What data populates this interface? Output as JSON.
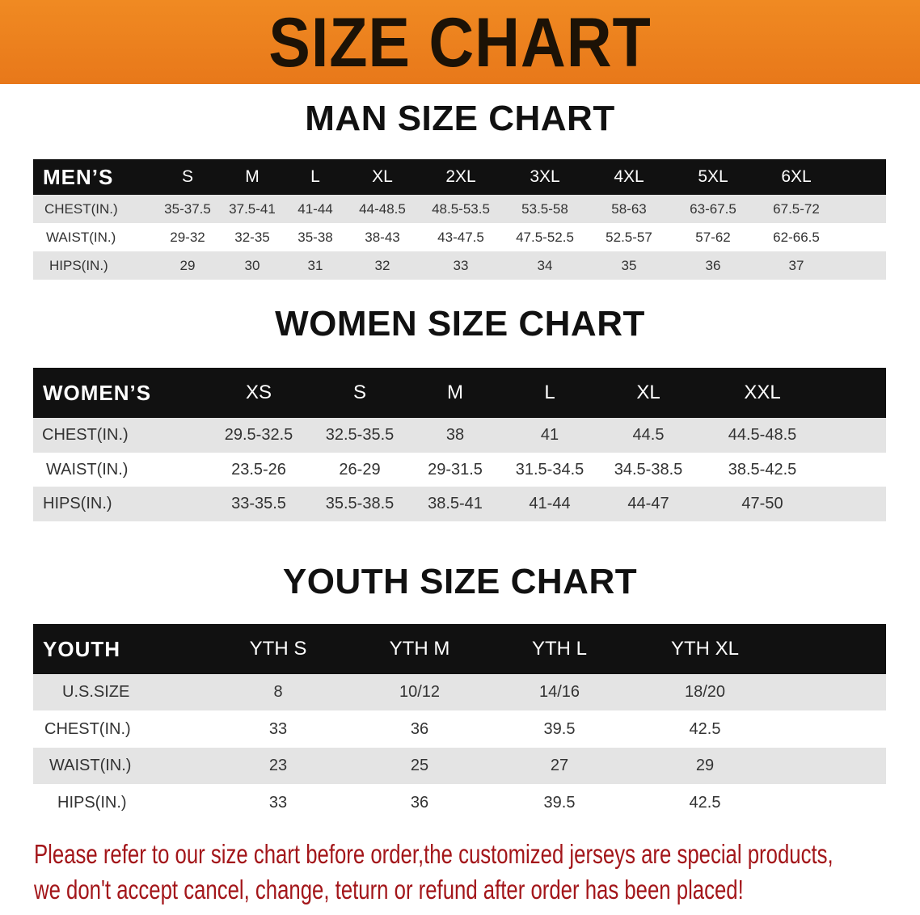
{
  "banner": {
    "title": "SIZE CHART",
    "color": "#e8781a"
  },
  "men": {
    "title": "MAN SIZE CHART",
    "header_label": "MEN’S",
    "sizes": [
      "S",
      "M",
      "L",
      "XL",
      "2XL",
      "3XL",
      "4XL",
      "5XL",
      "6XL"
    ],
    "rows": [
      {
        "label": "CHEST(IN.)",
        "values": [
          "35-37.5",
          "37.5-41",
          "41-44",
          "44-48.5",
          "48.5-53.5",
          "53.5-58",
          "58-63",
          "63-67.5",
          "67.5-72"
        ]
      },
      {
        "label": "WAIST(IN.)",
        "values": [
          "29-32",
          "32-35",
          "35-38",
          "38-43",
          "43-47.5",
          "47.5-52.5",
          "52.5-57",
          "57-62",
          "62-66.5"
        ]
      },
      {
        "label": "HIPS(IN.)",
        "values": [
          "29",
          "30",
          "31",
          "32",
          "33",
          "34",
          "35",
          "36",
          "37"
        ]
      }
    ]
  },
  "women": {
    "title": "WOMEN SIZE CHART",
    "header_label": "WOMEN’S",
    "sizes": [
      "XS",
      "S",
      "M",
      "L",
      "XL",
      "XXL"
    ],
    "rows": [
      {
        "label": "CHEST(IN.)",
        "values": [
          "29.5-32.5",
          "32.5-35.5",
          "38",
          "41",
          "44.5",
          "44.5-48.5"
        ]
      },
      {
        "label": "WAIST(IN.)",
        "values": [
          "23.5-26",
          "26-29",
          "29-31.5",
          "31.5-34.5",
          "34.5-38.5",
          "38.5-42.5"
        ]
      },
      {
        "label": "HIPS(IN.)",
        "values": [
          "33-35.5",
          "35.5-38.5",
          "38.5-41",
          "41-44",
          "44-47",
          "47-50"
        ]
      }
    ]
  },
  "youth": {
    "title": "YOUTH SIZE CHART",
    "header_label": "YOUTH",
    "sizes": [
      "YTH S",
      "YTH M",
      "YTH L",
      "YTH XL"
    ],
    "rows": [
      {
        "label": "U.S.SIZE",
        "values": [
          "8",
          "10/12",
          "14/16",
          "18/20"
        ]
      },
      {
        "label": "CHEST(IN.)",
        "values": [
          "33",
          "36",
          "39.5",
          "42.5"
        ]
      },
      {
        "label": "WAIST(IN.)",
        "values": [
          "23",
          "25",
          "27",
          "29"
        ]
      },
      {
        "label": "HIPS(IN.)",
        "values": [
          "33",
          "36",
          "39.5",
          "42.5"
        ]
      }
    ]
  },
  "notice": {
    "line1": "Please refer to our size chart before order,the customized jerseys are special products,",
    "line2": "we don't accept cancel, change, teturn or refund after order has been placed!",
    "color": "#a3161a"
  }
}
